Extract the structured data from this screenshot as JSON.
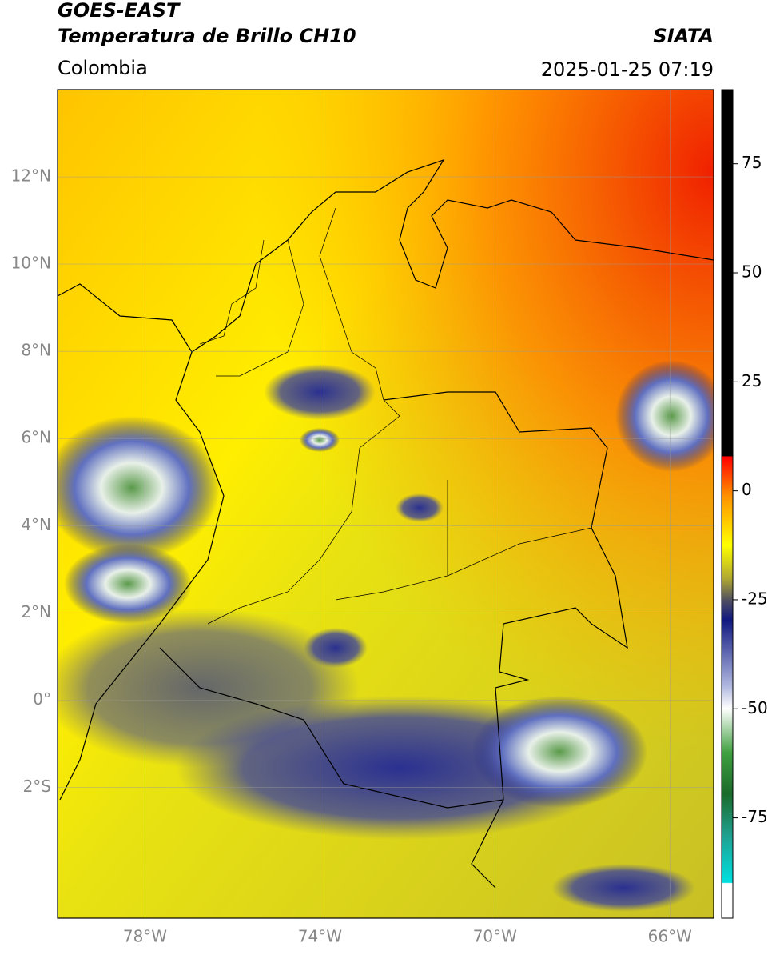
{
  "header": {
    "title": "GOES-EAST",
    "subtitle": "Temperatura de Brillo CH10",
    "region": "Colombia",
    "source": "SIATA",
    "datetime": "2025-01-25 07:19"
  },
  "map": {
    "lonlim": [
      -80,
      -65
    ],
    "latlim": [
      -5,
      14
    ],
    "lat_ticks": [
      {
        "value": 12,
        "label": "12°N"
      },
      {
        "value": 10,
        "label": "10°N"
      },
      {
        "value": 8,
        "label": "8°N"
      },
      {
        "value": 6,
        "label": "6°N"
      },
      {
        "value": 4,
        "label": "4°N"
      },
      {
        "value": 2,
        "label": "2°N"
      },
      {
        "value": 0,
        "label": "0°"
      },
      {
        "value": -2,
        "label": "2°S"
      }
    ],
    "lon_ticks": [
      {
        "value": -78,
        "label": "78°W"
      },
      {
        "value": -74,
        "label": "74°W"
      },
      {
        "value": -70,
        "label": "70°W"
      },
      {
        "value": -66,
        "label": "66°W"
      }
    ]
  },
  "colorbar": {
    "lim": [
      -98,
      92
    ],
    "ticks": [
      75,
      50,
      25,
      0,
      -25,
      -50,
      -75
    ]
  }
}
